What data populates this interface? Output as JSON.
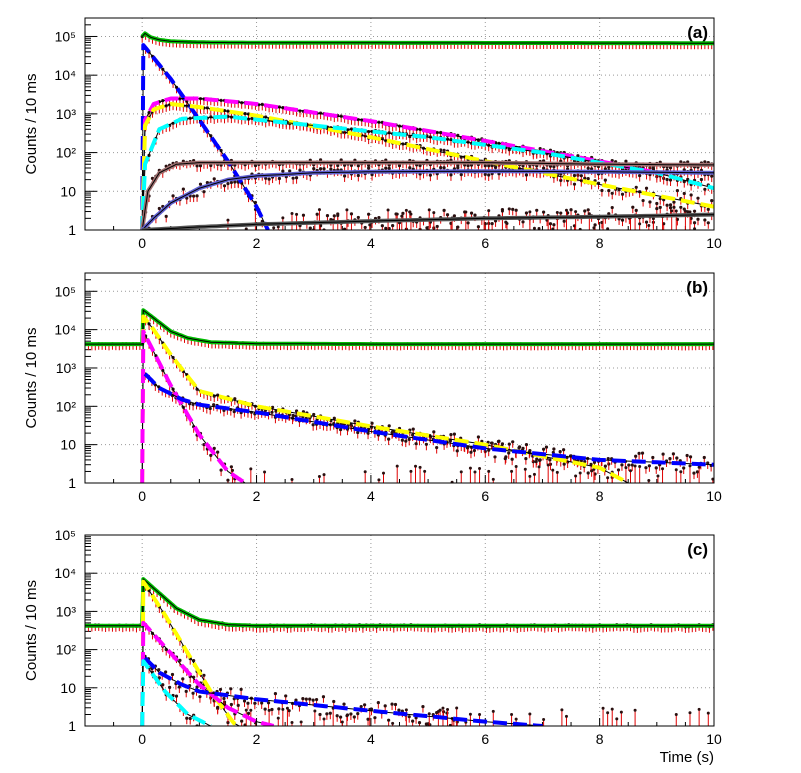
{
  "chart_data": [
    {
      "type": "scatter",
      "panel_label": "(a)",
      "ylabel": "Counts / 10 ms",
      "xlabel": "",
      "xlim": [
        -1,
        10
      ],
      "ylim": [
        1,
        300000
      ],
      "yscale": "log",
      "grid": true,
      "x_ticks": [
        "0",
        "2",
        "4",
        "6",
        "8",
        "10"
      ],
      "y_ticks": [
        "1",
        "10",
        "10²",
        "10³",
        "10⁴",
        "10⁵"
      ],
      "series": [
        {
          "color": "#00bb00",
          "style": "solid",
          "x": [
            0,
            0.05,
            0.15,
            0.3,
            0.5,
            0.8,
            1.2,
            2,
            4,
            6,
            8,
            10
          ],
          "y": [
            100000,
            120000,
            95000,
            82000,
            75000,
            72000,
            70000,
            69000,
            68500,
            68000,
            67500,
            67000
          ]
        },
        {
          "color": "#0000ff",
          "style": "dashed",
          "x": [
            0,
            0.02,
            0.5,
            1.0,
            1.5,
            2.0,
            2.2
          ],
          "y": [
            1,
            60000,
            8000,
            700,
            60,
            4,
            1
          ]
        },
        {
          "color": "#ff00ff",
          "style": "dashed",
          "x": [
            0,
            0.05,
            0.2,
            0.5,
            1,
            2,
            4,
            6,
            8,
            9
          ],
          "y": [
            1,
            700,
            1800,
            2500,
            2500,
            1800,
            650,
            200,
            60,
            30
          ]
        },
        {
          "color": "#ffff00",
          "style": "dashed",
          "x": [
            0,
            0.05,
            0.2,
            0.5,
            1,
            2,
            4,
            6,
            8,
            10
          ],
          "y": [
            1,
            500,
            1300,
            1800,
            1500,
            900,
            250,
            60,
            15,
            4
          ]
        },
        {
          "color": "#00ffff",
          "style": "dashed",
          "x": [
            0,
            0.05,
            0.3,
            0.7,
            1.5,
            3,
            5,
            7,
            9,
            10
          ],
          "y": [
            1,
            50,
            400,
            750,
            850,
            500,
            250,
            100,
            30,
            12
          ]
        },
        {
          "color": "#a07070",
          "style": "solid",
          "x": [
            0,
            0.1,
            0.3,
            0.6,
            1,
            2,
            4,
            6,
            8,
            10
          ],
          "y": [
            1,
            10,
            30,
            50,
            55,
            55,
            55,
            55,
            50,
            48
          ]
        },
        {
          "color": "#6060d0",
          "style": "solid",
          "x": [
            0,
            0.2,
            0.5,
            1,
            1.5,
            2,
            3,
            4,
            6,
            8,
            10
          ],
          "y": [
            1,
            2,
            5,
            12,
            20,
            25,
            30,
            32,
            33,
            32,
            30
          ]
        },
        {
          "color": "#555555",
          "style": "solid",
          "x": [
            0,
            1,
            2,
            4,
            6,
            8,
            10
          ],
          "y": [
            1,
            1.2,
            1.4,
            1.7,
            2,
            2.2,
            2.5
          ]
        }
      ]
    },
    {
      "type": "scatter",
      "panel_label": "(b)",
      "ylabel": "Counts / 10 ms",
      "xlabel": "",
      "xlim": [
        -1,
        10
      ],
      "ylim": [
        1,
        300000
      ],
      "yscale": "log",
      "grid": true,
      "x_ticks": [
        "0",
        "2",
        "4",
        "6",
        "8",
        "10"
      ],
      "y_ticks": [
        "1",
        "10",
        "10²",
        "10³",
        "10⁴",
        "10⁵"
      ],
      "series": [
        {
          "color": "#00bb00",
          "style": "solid",
          "x": [
            -1,
            0,
            0.02,
            0.2,
            0.5,
            0.8,
            1.2,
            2,
            4,
            6,
            8,
            10
          ],
          "y": [
            4200,
            4200,
            32000,
            20000,
            9000,
            6000,
            4700,
            4300,
            4200,
            4200,
            4200,
            4200
          ]
        },
        {
          "color": "#ffff00",
          "style": "dashed",
          "x": [
            0,
            0.02,
            0.2,
            0.5,
            1,
            2,
            4,
            6,
            8,
            8.5
          ],
          "y": [
            1,
            22000,
            10000,
            2200,
            250,
            100,
            30,
            10,
            2.5,
            1
          ]
        },
        {
          "color": "#ff00ff",
          "style": "dashed",
          "x": [
            0,
            0.02,
            0.5,
            1,
            1.5,
            1.8
          ],
          "y": [
            1,
            9000,
            350,
            18,
            2,
            1
          ]
        },
        {
          "color": "#0000ff",
          "style": "dashed",
          "x": [
            0.05,
            0.3,
            0.7,
            1,
            2,
            4,
            6,
            8,
            10
          ],
          "y": [
            700,
            300,
            150,
            110,
            70,
            22,
            8,
            4,
            3
          ]
        }
      ]
    },
    {
      "type": "scatter",
      "panel_label": "(c)",
      "ylabel": "Counts / 10 ms",
      "xlabel": "Time (s)",
      "xlim": [
        -1,
        10
      ],
      "ylim": [
        1,
        100000
      ],
      "yscale": "log",
      "grid": true,
      "x_ticks": [
        "0",
        "2",
        "4",
        "6",
        "8",
        "10"
      ],
      "y_ticks": [
        "1",
        "10",
        "10²",
        "10³",
        "10⁴",
        "10⁵"
      ],
      "series": [
        {
          "color": "#00bb00",
          "style": "solid",
          "x": [
            -1,
            0,
            0.02,
            0.3,
            0.6,
            1,
            1.5,
            2,
            4,
            6,
            8,
            10
          ],
          "y": [
            420,
            420,
            7000,
            3000,
            1200,
            600,
            450,
            420,
            420,
            420,
            420,
            420
          ]
        },
        {
          "color": "#ffff00",
          "style": "dashed",
          "x": [
            0,
            0.02,
            0.4,
            0.8,
            1.2,
            1.6,
            1.7
          ],
          "y": [
            1,
            6000,
            800,
            80,
            8,
            1.2,
            1
          ]
        },
        {
          "color": "#ff00ff",
          "style": "dashed",
          "x": [
            0,
            0.02,
            0.5,
            1,
            1.5,
            2,
            2.3
          ],
          "y": [
            1,
            500,
            80,
            12,
            3,
            1.3,
            1
          ]
        },
        {
          "color": "#0000ff",
          "style": "dashed",
          "x": [
            0.05,
            0.3,
            0.7,
            1,
            2,
            4,
            6,
            7
          ],
          "y": [
            60,
            25,
            12,
            8,
            5,
            2.5,
            1.3,
            1
          ]
        },
        {
          "color": "#00ffff",
          "style": "dashed",
          "x": [
            0,
            0.02,
            0.4,
            0.8,
            1.2
          ],
          "y": [
            1,
            50,
            8,
            2,
            1
          ]
        }
      ]
    }
  ]
}
